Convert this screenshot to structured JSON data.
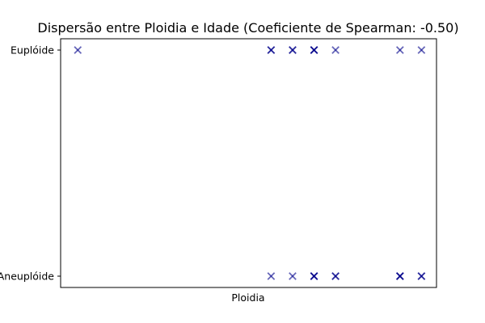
{
  "chart_data": {
    "type": "scatter",
    "title": "Dispersão entre Ploidia e Idade (Coeficiente de Spearman: -0.50)",
    "xlabel": "Ploidia",
    "ylabel": "",
    "x_ticks_visible": false,
    "y_categories": [
      "Aneuplóide",
      "Euplóide"
    ],
    "xlim": [
      0,
      17.5
    ],
    "marker": "x",
    "color": "#00008B",
    "alpha_note": "points are semi-transparent; overlapping points appear darker",
    "series": [
      {
        "points": [
          {
            "x": 0.8,
            "y": "Euplóide"
          },
          {
            "x": 9.8,
            "y": "Euplóide"
          },
          {
            "x": 9.8,
            "y": "Euplóide"
          },
          {
            "x": 10.8,
            "y": "Euplóide"
          },
          {
            "x": 10.8,
            "y": "Euplóide"
          },
          {
            "x": 11.8,
            "y": "Euplóide"
          },
          {
            "x": 11.8,
            "y": "Euplóide"
          },
          {
            "x": 11.8,
            "y": "Euplóide"
          },
          {
            "x": 12.8,
            "y": "Euplóide"
          },
          {
            "x": 15.8,
            "y": "Euplóide"
          },
          {
            "x": 16.8,
            "y": "Euplóide"
          },
          {
            "x": 9.8,
            "y": "Aneuplóide"
          },
          {
            "x": 10.8,
            "y": "Aneuplóide"
          },
          {
            "x": 11.8,
            "y": "Aneuplóide"
          },
          {
            "x": 11.8,
            "y": "Aneuplóide"
          },
          {
            "x": 11.8,
            "y": "Aneuplóide"
          },
          {
            "x": 12.8,
            "y": "Aneuplóide"
          },
          {
            "x": 12.8,
            "y": "Aneuplóide"
          },
          {
            "x": 15.8,
            "y": "Aneuplóide"
          },
          {
            "x": 15.8,
            "y": "Aneuplóide"
          },
          {
            "x": 15.8,
            "y": "Aneuplóide"
          },
          {
            "x": 16.8,
            "y": "Aneuplóide"
          },
          {
            "x": 16.8,
            "y": "Aneuplóide"
          }
        ]
      }
    ]
  }
}
